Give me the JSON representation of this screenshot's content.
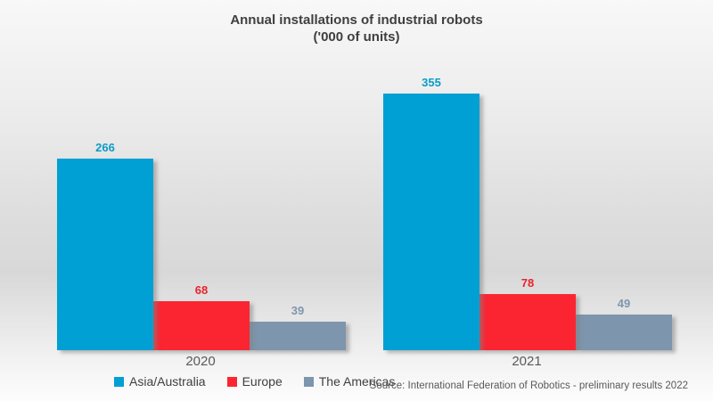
{
  "title": {
    "line1": "Annual installations of industrial robots",
    "line2": "('000 of units)"
  },
  "chart_data": {
    "type": "bar",
    "title": "Annual installations of industrial robots",
    "subtitle": "('000 of units)",
    "categories": [
      "2020",
      "2021"
    ],
    "series": [
      {
        "name": "Asia/Australia",
        "values": [
          266,
          355
        ],
        "color": "#009FD4",
        "label_color": "#0C9BC8"
      },
      {
        "name": "Europe",
        "values": [
          68,
          78
        ],
        "color": "#FB2532",
        "label_color": "#E8242F"
      },
      {
        "name": "The Americas",
        "values": [
          39,
          49
        ],
        "color": "#7D95AD",
        "label_color": "#7E96AE"
      }
    ],
    "ylim": [
      0,
      380
    ],
    "grid": false,
    "axis_lines": false,
    "legend_position": "bottom",
    "value_labels": true
  },
  "source_note": "Source: International Federation of Robotics - preliminary results 2022",
  "background": {
    "top": "#f8f8f8",
    "middle": "#d8d8d8",
    "bottom": "#fdfdfd"
  }
}
